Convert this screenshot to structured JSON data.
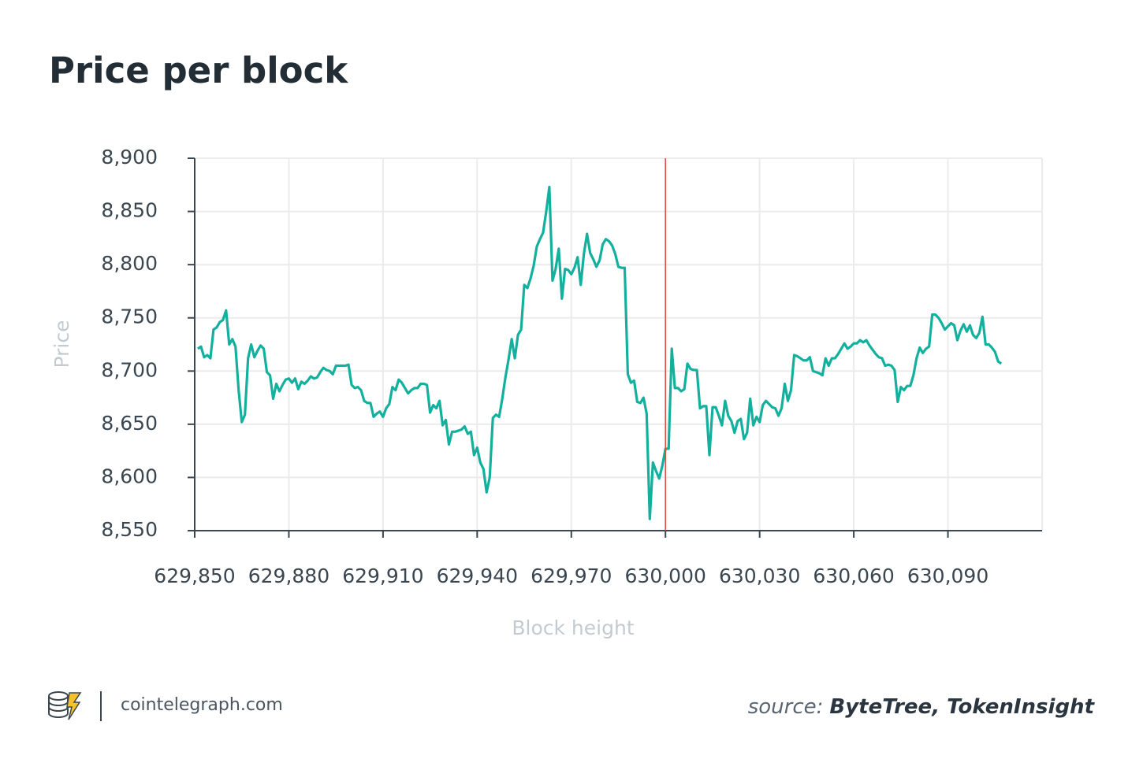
{
  "chart_data": {
    "type": "line",
    "title": "Price per block",
    "xlabel": "Block height",
    "ylabel": "Price",
    "footer": "cointelegraph.com",
    "source_label": "source:",
    "source": "ByteTree, TokenInsight",
    "xlim": [
      629850,
      630120
    ],
    "ylim": [
      8550,
      8900
    ],
    "xticks": [
      {
        "value": 629850,
        "label": "629,850"
      },
      {
        "value": 629880,
        "label": "629,880"
      },
      {
        "value": 629910,
        "label": "629,910"
      },
      {
        "value": 629940,
        "label": "629,940"
      },
      {
        "value": 629970,
        "label": "629,970"
      },
      {
        "value": 630000,
        "label": "630,000"
      },
      {
        "value": 630030,
        "label": "630,030"
      },
      {
        "value": 630060,
        "label": "630,060"
      },
      {
        "value": 630090,
        "label": "630,090"
      }
    ],
    "yticks": [
      {
        "value": 8550,
        "label": "8,550"
      },
      {
        "value": 8600,
        "label": "8,600"
      },
      {
        "value": 8650,
        "label": "8,650"
      },
      {
        "value": 8700,
        "label": "8,700"
      },
      {
        "value": 8750,
        "label": "8,750"
      },
      {
        "value": 8800,
        "label": "8,800"
      },
      {
        "value": 8850,
        "label": "8,850"
      },
      {
        "value": 8900,
        "label": "8,900"
      }
    ],
    "grid": true,
    "vline": {
      "value": 630000,
      "color": "#e0483e"
    },
    "x": [
      629851,
      629852,
      629853,
      629854,
      629855,
      629856,
      629857,
      629858,
      629859,
      629860,
      629861,
      629862,
      629863,
      629864,
      629865,
      629866,
      629867,
      629868,
      629869,
      629870,
      629871,
      629872,
      629873,
      629874,
      629875,
      629876,
      629877,
      629878,
      629879,
      629880,
      629881,
      629882,
      629883,
      629884,
      629885,
      629886,
      629887,
      629888,
      629889,
      629890,
      629891,
      629892,
      629893,
      629894,
      629895,
      629896,
      629897,
      629898,
      629899,
      629900,
      629901,
      629902,
      629903,
      629904,
      629905,
      629906,
      629907,
      629908,
      629909,
      629910,
      629911,
      629912,
      629913,
      629914,
      629915,
      629916,
      629917,
      629918,
      629919,
      629920,
      629921,
      629922,
      629923,
      629924,
      629925,
      629926,
      629927,
      629928,
      629929,
      629930,
      629931,
      629932,
      629933,
      629934,
      629935,
      629936,
      629937,
      629938,
      629939,
      629940,
      629941,
      629942,
      629943,
      629944,
      629945,
      629946,
      629947,
      629948,
      629949,
      629950,
      629951,
      629952,
      629953,
      629954,
      629955,
      629956,
      629957,
      629958,
      629959,
      629960,
      629961,
      629962,
      629963,
      629964,
      629965,
      629966,
      629967,
      629968,
      629969,
      629970,
      629971,
      629972,
      629973,
      629974,
      629975,
      629976,
      629977,
      629978,
      629979,
      629980,
      629981,
      629982,
      629983,
      629984,
      629985,
      629986,
      629987,
      629988,
      629989,
      629990,
      629991,
      629992,
      629993,
      629994,
      629995,
      629996,
      629997,
      629998,
      629999,
      630000,
      630001,
      630002,
      630003,
      630004,
      630005,
      630006,
      630007,
      630008,
      630009,
      630010,
      630011,
      630012,
      630013,
      630014,
      630015,
      630016,
      630017,
      630018,
      630019,
      630020,
      630021,
      630022,
      630023,
      630024,
      630025,
      630026,
      630027,
      630028,
      630029,
      630030,
      630031,
      630032,
      630033,
      630034,
      630035,
      630036,
      630037,
      630038,
      630039,
      630040,
      630041,
      630042,
      630043,
      630044,
      630045,
      630046,
      630047,
      630048,
      630049,
      630050,
      630051,
      630052,
      630053,
      630054,
      630055,
      630056,
      630057,
      630058,
      630059,
      630060,
      630061,
      630062,
      630063,
      630064,
      630065,
      630066,
      630067,
      630068,
      630069,
      630070,
      630071,
      630072,
      630073,
      630074,
      630075,
      630076,
      630077,
      630078,
      630079,
      630080,
      630081,
      630082,
      630083,
      630084,
      630085,
      630086,
      630087,
      630088,
      630089,
      630090,
      630091,
      630092,
      630093,
      630094,
      630095,
      630096,
      630097,
      630098,
      630099,
      630100,
      630101,
      630102,
      630103,
      630104,
      630105,
      630106,
      630107
    ],
    "series": [
      {
        "name": "Price",
        "color": "#13b09e",
        "values": [
          8721,
          8723,
          8713,
          8715,
          8712,
          8739,
          8741,
          8746,
          8748,
          8757,
          8725,
          8730,
          8723,
          8682,
          8652,
          8659,
          8712,
          8725,
          8713,
          8719,
          8724,
          8721,
          8699,
          8696,
          8674,
          8688,
          8681,
          8687,
          8692,
          8693,
          8689,
          8693,
          8683,
          8690,
          8688,
          8691,
          8695,
          8693,
          8694,
          8699,
          8703,
          8701,
          8700,
          8697,
          8705,
          8705,
          8705,
          8705,
          8706,
          8687,
          8684,
          8685,
          8682,
          8672,
          8670,
          8670,
          8657,
          8660,
          8662,
          8657,
          8665,
          8669,
          8685,
          8682,
          8692,
          8689,
          8684,
          8679,
          8682,
          8684,
          8684,
          8688,
          8688,
          8687,
          8661,
          8668,
          8665,
          8672,
          8649,
          8654,
          8631,
          8643,
          8643,
          8644,
          8645,
          8648,
          8641,
          8643,
          8621,
          8628,
          8614,
          8608,
          8586,
          8600,
          8656,
          8659,
          8657,
          8674,
          8694,
          8711,
          8730,
          8712,
          8734,
          8739,
          8781,
          8778,
          8787,
          8799,
          8817,
          8824,
          8830,
          8850,
          8873,
          8785,
          8796,
          8815,
          8768,
          8796,
          8795,
          8791,
          8797,
          8807,
          8781,
          8810,
          8829,
          8811,
          8805,
          8798,
          8804,
          8819,
          8824,
          8822,
          8818,
          8810,
          8798,
          8797,
          8797,
          8697,
          8689,
          8691,
          8671,
          8670,
          8675,
          8660,
          8561,
          8614,
          8606,
          8599,
          8611,
          8627,
          8627,
          8721,
          8684,
          8684,
          8681,
          8683,
          8707,
          8702,
          8701,
          8701,
          8665,
          8667,
          8667,
          8621,
          8666,
          8666,
          8658,
          8649,
          8672,
          8658,
          8653,
          8642,
          8653,
          8655,
          8636,
          8642,
          8674,
          8649,
          8657,
          8652,
          8668,
          8672,
          8669,
          8666,
          8665,
          8658,
          8665,
          8688,
          8672,
          8682,
          8715,
          8714,
          8712,
          8710,
          8710,
          8713,
          8700,
          8699,
          8698,
          8696,
          8712,
          8705,
          8712,
          8712,
          8716,
          8721,
          8726,
          8721,
          8723,
          8726,
          8726,
          8729,
          8727,
          8729,
          8724,
          8720,
          8716,
          8713,
          8712,
          8705,
          8706,
          8705,
          8701,
          8671,
          8685,
          8682,
          8686,
          8686,
          8696,
          8712,
          8722,
          8717,
          8721,
          8723,
          8753,
          8753,
          8750,
          8745,
          8739,
          8742,
          8745,
          8743,
          8729,
          8738,
          8744,
          8737,
          8743,
          8734,
          8731,
          8736,
          8751,
          8725,
          8725,
          8722,
          8718,
          8709,
          8707
        ]
      }
    ]
  }
}
